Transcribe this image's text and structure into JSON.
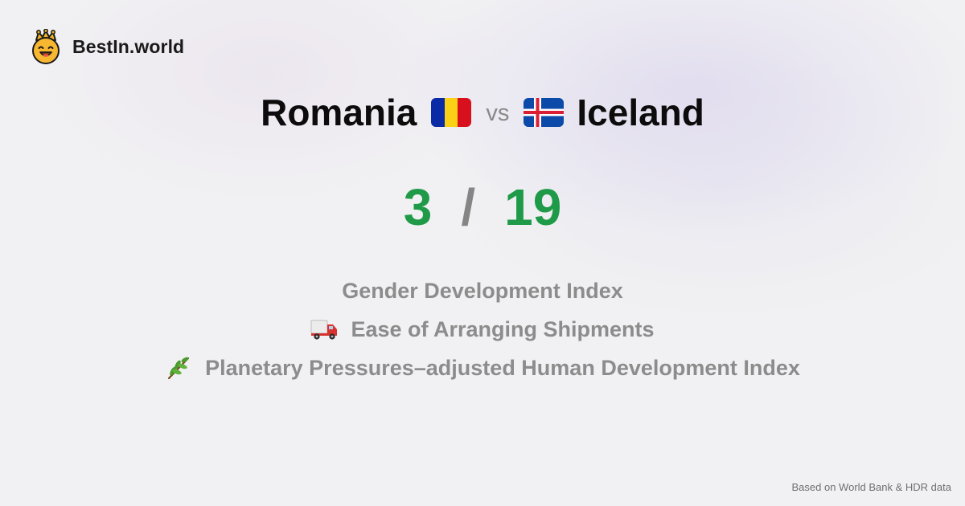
{
  "brand": {
    "name": "BestIn.world",
    "icon": "crowned-smiley-icon"
  },
  "comparison": {
    "country_a": {
      "name": "Romania",
      "flag": "romania-flag-icon"
    },
    "vs_label": "vs",
    "country_b": {
      "name": "Iceland",
      "flag": "iceland-flag-icon"
    }
  },
  "score": {
    "a": "3",
    "separator": "/",
    "b": "19"
  },
  "metrics": [
    {
      "label": "Gender Development Index",
      "icon": ""
    },
    {
      "label": "Ease of Arranging Shipments",
      "icon": "delivery-truck-icon"
    },
    {
      "label": "Planetary Pressures–adjusted Human Development Index",
      "icon": "herb-branch-icon"
    }
  ],
  "footer": {
    "source_note": "Based on World Bank & HDR data"
  },
  "colors": {
    "score": "#1f9a48",
    "muted": "#8c8c8c",
    "text": "#0c0c0c"
  }
}
